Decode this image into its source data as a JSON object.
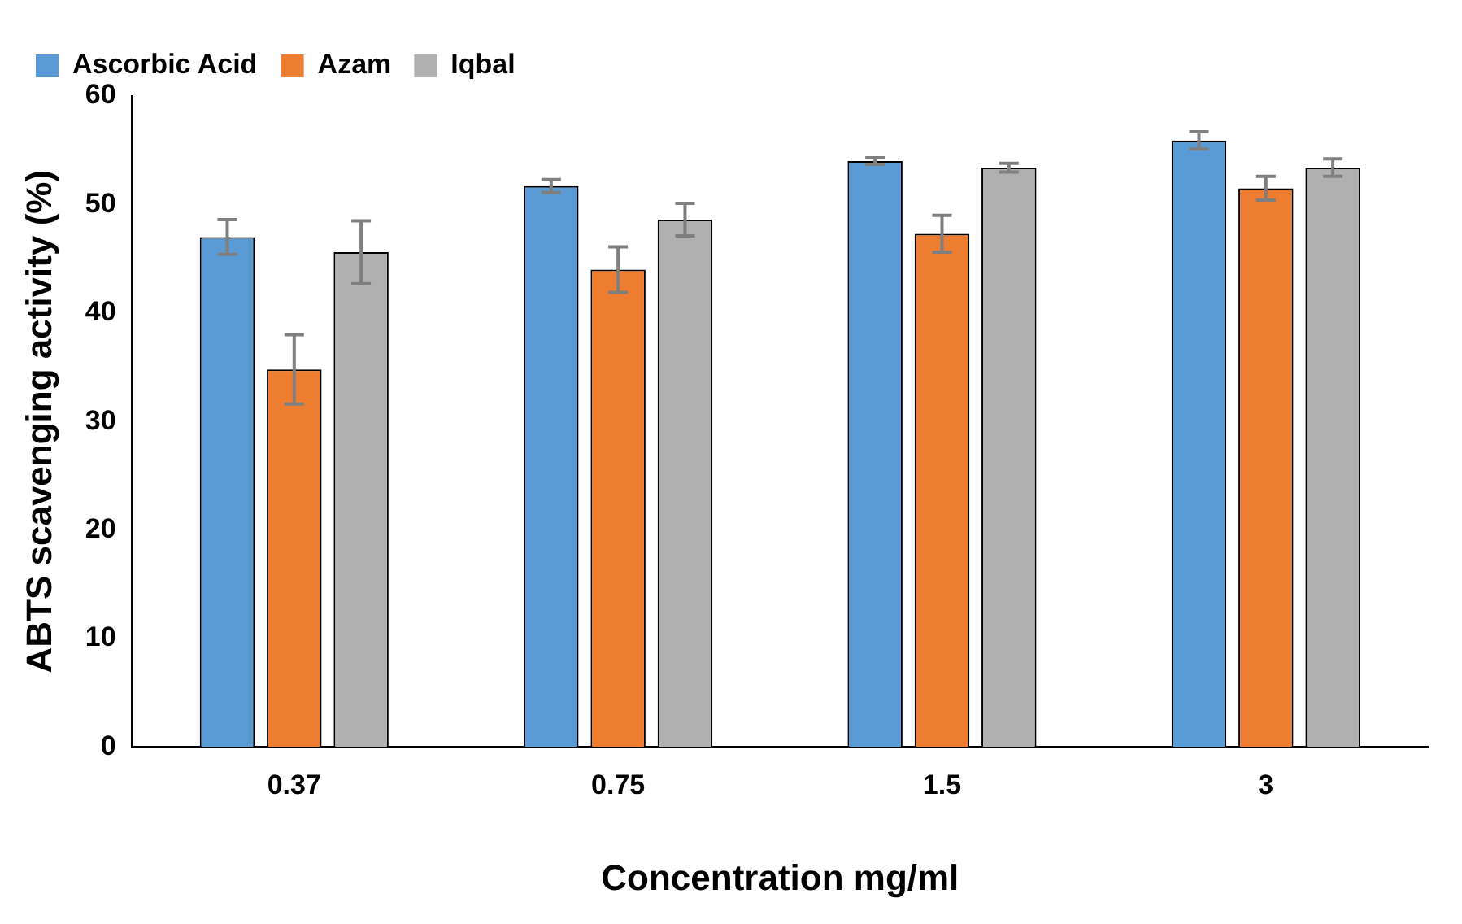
{
  "chart_data": {
    "type": "bar",
    "xlabel": "Concentration mg/ml",
    "ylabel": "ABTS scavenging activity (%)",
    "categories": [
      "0.37",
      "0.75",
      "1.5",
      "3"
    ],
    "series": [
      {
        "name": "Ascorbic Acid",
        "color": "#5b9bd5",
        "values": [
          47,
          51.7,
          54,
          55.9
        ],
        "errors": [
          1.6,
          0.6,
          0.3,
          0.8
        ]
      },
      {
        "name": "Azam",
        "color": "#ed7d31",
        "values": [
          34.8,
          44,
          47.3,
          51.5
        ],
        "errors": [
          3.2,
          2.1,
          1.7,
          1.1
        ]
      },
      {
        "name": "Iqbal",
        "color": "#b0b0b0",
        "values": [
          45.6,
          48.6,
          53.4,
          53.4
        ],
        "errors": [
          2.9,
          1.5,
          0.4,
          0.8
        ]
      }
    ],
    "ylim": [
      0,
      60
    ],
    "yticks": [
      0,
      10,
      20,
      30,
      40,
      50,
      60
    ],
    "grid": false,
    "legend": "top left"
  }
}
